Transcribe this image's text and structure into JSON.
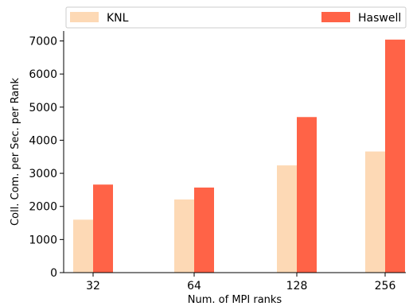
{
  "chart_data": {
    "type": "bar",
    "title": "",
    "xlabel": "Num. of MPI ranks",
    "ylabel": "Coll. Com. per Sec. per Rank",
    "categories": [
      "32",
      "64",
      "128",
      "256"
    ],
    "ylim": [
      0,
      7300
    ],
    "yticks": [
      0,
      1000,
      2000,
      3000,
      4000,
      5000,
      6000,
      7000
    ],
    "grid": false,
    "legend_position": "top, above plot area",
    "series": [
      {
        "name": "KNL",
        "color": "#fdd9b5",
        "values": [
          1600,
          2210,
          3240,
          3660
        ]
      },
      {
        "name": "Haswell",
        "color": "#ff6347",
        "values": [
          2660,
          2570,
          4700,
          7040
        ]
      }
    ]
  }
}
